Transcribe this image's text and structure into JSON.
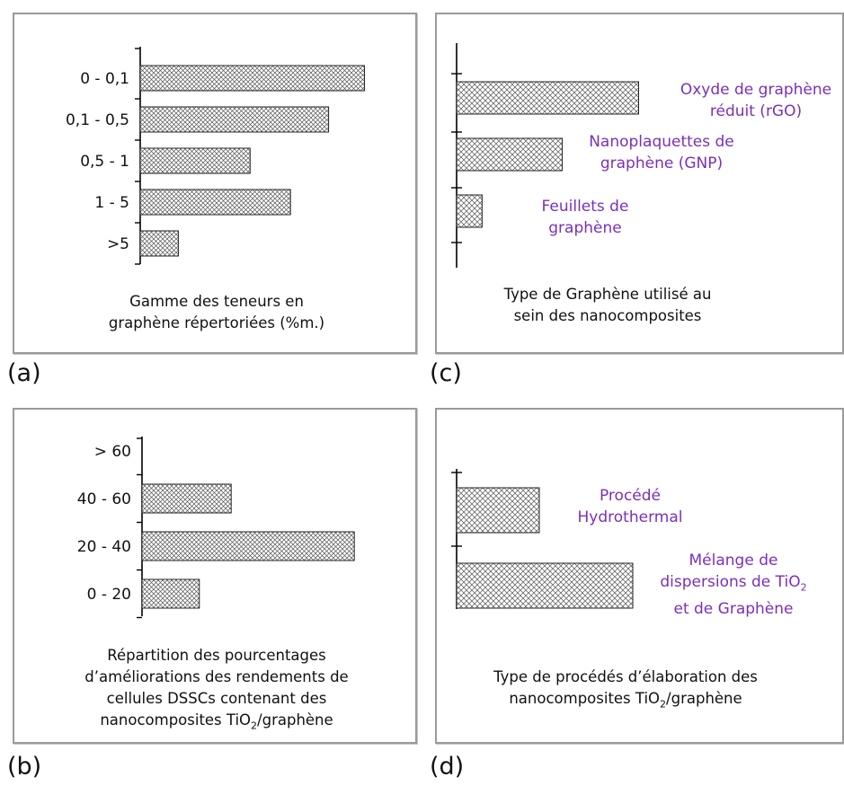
{
  "colors": {
    "frame": "#9a9a9a",
    "axis": "#000000",
    "bar_stroke": "#222222",
    "hatch": "#555555",
    "label_purple": "#7b2fbe"
  },
  "panel_tags": {
    "a": "(a)",
    "b": "(b)",
    "c": "(c)",
    "d": "(d)"
  },
  "captions": {
    "a": [
      "Gamme des teneurs en",
      "graphène répertoriées (%m.)"
    ],
    "b": [
      "Répartition des pourcentages",
      "d’améliorations des rendements de",
      "cellules DSSCs contenant des"
    ],
    "b_last": {
      "pre": "nanocomposites TiO",
      "sub": "2",
      "post": "/graphène"
    },
    "c": [
      "Type de Graphène utilisé au",
      "sein des nanocomposites"
    ],
    "d": [
      "Type de procédés d’élaboration des"
    ],
    "d_last": {
      "pre": "nanocomposites TiO",
      "sub": "2",
      "post": "/graphène"
    }
  },
  "labels_c": {
    "rgo": [
      "Oxyde de graphène",
      "réduit (rGO)"
    ],
    "gnp": [
      "Nanoplaquettes de",
      "graphène (GNP)"
    ],
    "feuillets": [
      "Feuillets de",
      "graphène"
    ]
  },
  "labels_d": {
    "hydro": [
      "Procédé",
      "Hydrothermal"
    ],
    "melange": [
      "Mélange de"
    ],
    "melange_line2": {
      "pre": "dispersions de TiO",
      "sub": "2"
    },
    "melange_line3": "et de Graphène"
  },
  "chart_data": [
    {
      "id": "a",
      "type": "bar",
      "orientation": "horizontal",
      "categories": [
        "0 - 0,1",
        "0,1 - 0,5",
        "0,5 - 1",
        "1 - 5",
        ">5"
      ],
      "values": [
        10,
        8.4,
        4.9,
        6.7,
        1.7
      ],
      "xlim": [
        0,
        10.5
      ]
    },
    {
      "id": "b",
      "type": "bar",
      "orientation": "horizontal",
      "categories": [
        "> 60",
        "40 - 60",
        "20 - 40",
        "0 - 20"
      ],
      "values": [
        0,
        4.2,
        10,
        2.7
      ],
      "xlim": [
        0,
        10.5
      ]
    },
    {
      "id": "c",
      "type": "bar",
      "orientation": "horizontal",
      "categories": [
        "Oxyde de graphène réduit (rGO)",
        "Nanoplaquettes de graphène (GNP)",
        "Feuillets de graphène"
      ],
      "values": [
        10,
        5.8,
        1.4
      ],
      "xlim": [
        0,
        12
      ]
    },
    {
      "id": "d",
      "type": "bar",
      "orientation": "horizontal",
      "categories": [
        "Procédé Hydrothermal",
        "Mélange de dispersions de TiO2 et de Graphène"
      ],
      "values": [
        4.6,
        9.8
      ],
      "xlim": [
        0,
        12
      ]
    }
  ]
}
